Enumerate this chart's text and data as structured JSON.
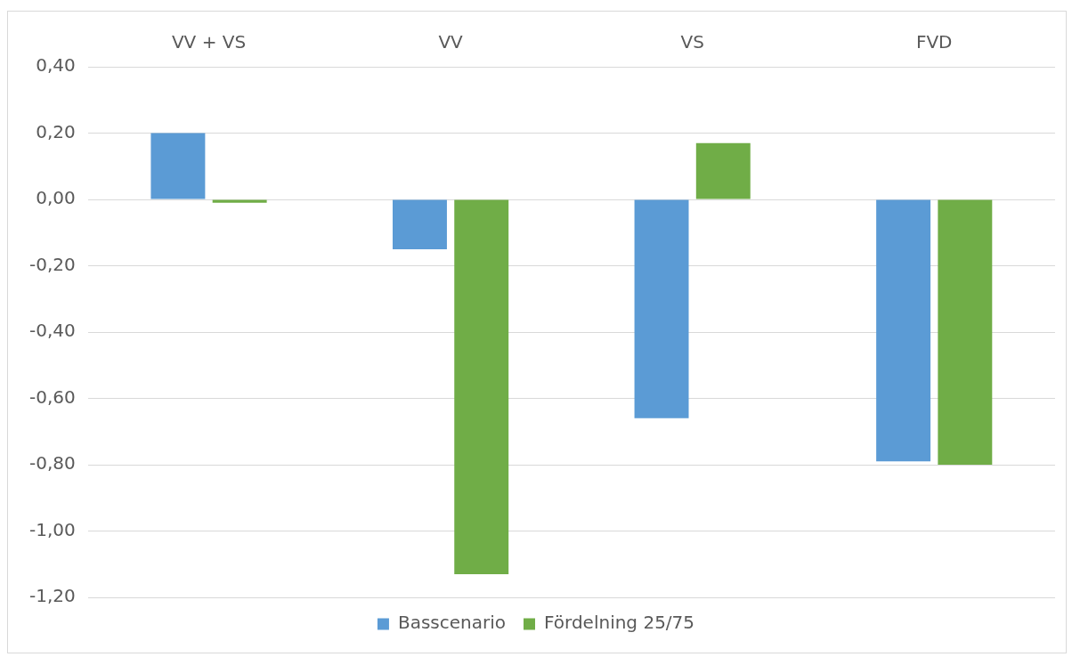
{
  "chart_data": {
    "type": "bar",
    "categories": [
      "VV + VS",
      "VV",
      "VS",
      "FVD"
    ],
    "series": [
      {
        "name": "Basscenario",
        "color": "#5b9bd5",
        "values": [
          0.2,
          -0.15,
          -0.66,
          -0.79
        ]
      },
      {
        "name": "Fördelning 25/75",
        "color": "#70ad47",
        "values": [
          -0.01,
          -1.13,
          0.17,
          -0.8
        ]
      }
    ],
    "ylim": [
      -1.2,
      0.4
    ],
    "yticks": [
      {
        "value": 0.4,
        "label": "0,40"
      },
      {
        "value": 0.2,
        "label": "0,20"
      },
      {
        "value": 0,
        "label": "0,00"
      },
      {
        "value": -0.2,
        "label": "-0,20"
      },
      {
        "value": -0.4,
        "label": "-0,40"
      },
      {
        "value": -0.6,
        "label": "-0,60"
      },
      {
        "value": -0.8,
        "label": "-0,80"
      },
      {
        "value": -1.0,
        "label": "-1,00"
      },
      {
        "value": -1.2,
        "label": "-1,20"
      }
    ],
    "grid": "y",
    "legend": "bottom"
  }
}
